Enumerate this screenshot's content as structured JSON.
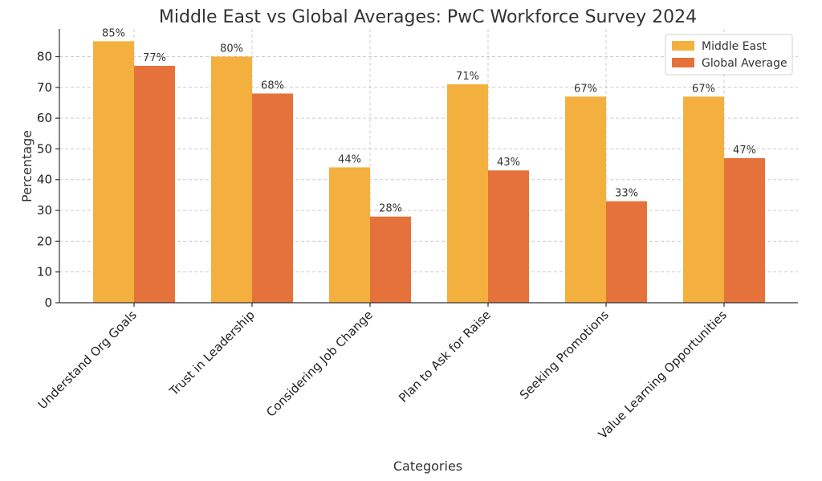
{
  "chart_data": {
    "type": "bar",
    "title": "Middle East vs Global Averages: PwC Workforce Survey 2024",
    "xlabel": "Categories",
    "ylabel": "Percentage",
    "ylim": [
      0,
      89
    ],
    "yticks": [
      0,
      10,
      20,
      30,
      40,
      50,
      60,
      70,
      80
    ],
    "grid": true,
    "legend_position": "top-right",
    "categories": [
      "Understand Org Goals",
      "Trust in Leadership",
      "Considering Job Change",
      "Plan to Ask for Raise",
      "Seeking Promotions",
      "Value Learning Opportunities"
    ],
    "series": [
      {
        "name": "Middle East",
        "color": "#F4B03E",
        "values": [
          85,
          80,
          44,
          71,
          67,
          67
        ],
        "labels": [
          "85%",
          "80%",
          "44%",
          "71%",
          "67%",
          "67%"
        ]
      },
      {
        "name": "Global Average",
        "color": "#E5723A",
        "values": [
          77,
          68,
          28,
          43,
          33,
          47
        ],
        "labels": [
          "77%",
          "68%",
          "28%",
          "43%",
          "33%",
          "47%"
        ]
      }
    ]
  }
}
